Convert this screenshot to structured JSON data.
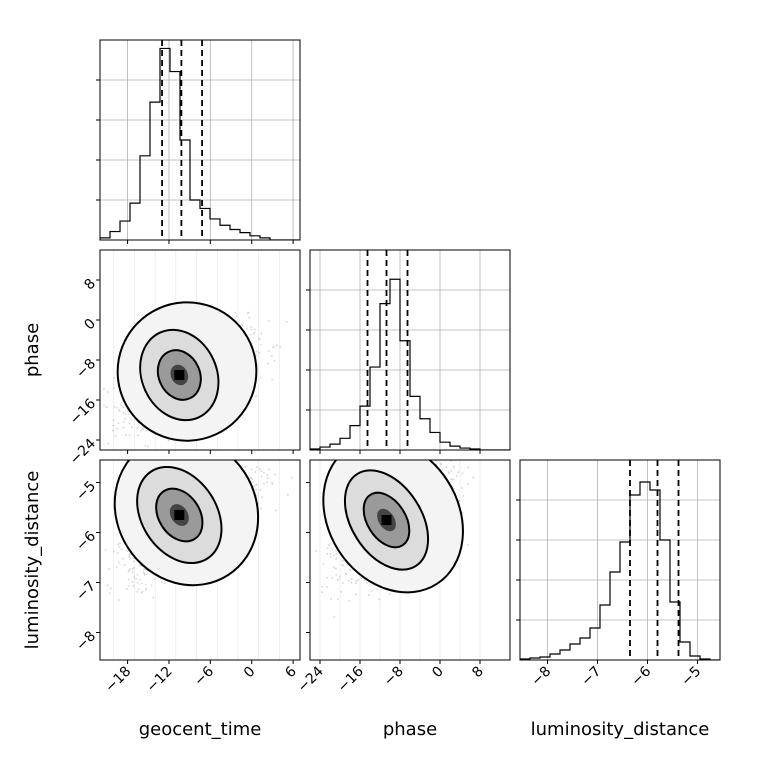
{
  "chart_data": {
    "type": "corner",
    "parameters": [
      {
        "name": "geocent_time",
        "label": "geocent_time",
        "range": [
          -22,
          7
        ],
        "ticks": [
          -18,
          -12,
          -6,
          0,
          6
        ],
        "quantiles": [
          -13,
          -10.2,
          -7.2
        ]
      },
      {
        "name": "phase",
        "label": "phase",
        "range": [
          -26,
          14
        ],
        "ticks": [
          -24,
          -16,
          -8,
          0,
          8
        ],
        "quantiles": [
          -14.5,
          -10.7,
          -6.5
        ]
      },
      {
        "name": "luminosity_distance",
        "label": "luminosity_distance",
        "range": [
          -8.55,
          -4.55
        ],
        "ticks": [
          -8,
          -7,
          -6,
          -5
        ],
        "quantiles": [
          -6.35,
          -5.8,
          -5.38
        ]
      }
    ],
    "tick_labels": {
      "geocent_time": [
        "−18",
        "−12",
        "−6",
        "0",
        "6"
      ],
      "phase": [
        "−24",
        "−16",
        "−8",
        "0",
        "8"
      ],
      "luminosity_distance": [
        "−8",
        "−7",
        "−6",
        "−5"
      ]
    },
    "histograms": {
      "geocent_time": {
        "edges_start": -22,
        "bin_width": 1.45,
        "counts": [
          2,
          8,
          18,
          35,
          80,
          131,
          182,
          160,
          95,
          38,
          30,
          20,
          14,
          10,
          7,
          4,
          2,
          0,
          0,
          0
        ],
        "ymax": 190
      },
      "phase": {
        "edges_start": -26,
        "bin_width": 2,
        "counts": [
          1,
          3,
          6,
          12,
          25,
          45,
          85,
          150,
          175,
          112,
          55,
          32,
          18,
          8,
          4,
          2,
          1,
          0,
          0,
          0
        ],
        "ymax": 205
      },
      "luminosity_distance": {
        "edges_start": -8.55,
        "bin_width": 0.2,
        "counts": [
          1,
          2,
          3,
          6,
          10,
          16,
          22,
          32,
          55,
          88,
          118,
          165,
          178,
          170,
          120,
          58,
          18,
          4,
          1,
          0
        ],
        "ymax": 200
      }
    },
    "joint": [
      {
        "x": "geocent_time",
        "y": "phase",
        "center": [
          -10.5,
          -11
        ],
        "spread": [
          3.5,
          4.5
        ],
        "corr": 0.55,
        "grid_x": [
          -20,
          -17,
          -14,
          -11,
          -8,
          -5,
          -2,
          1,
          4
        ],
        "grid_y": [
          -20,
          -16,
          -12,
          -8,
          -4,
          0,
          4,
          8
        ]
      },
      {
        "x": "geocent_time",
        "y": "luminosity_distance",
        "center": [
          -10.5,
          -5.65
        ],
        "spread": [
          3.5,
          0.55
        ],
        "corr": 0.65,
        "grid_x": [
          -20,
          -17,
          -14,
          -11,
          -8,
          -5,
          -2,
          1,
          4
        ],
        "grid_y": [
          -8,
          -7.5,
          -7,
          -6.5,
          -6,
          -5.5,
          -5
        ]
      },
      {
        "x": "phase",
        "y": "luminosity_distance",
        "center": [
          -10.7,
          -5.75
        ],
        "spread": [
          4.5,
          0.55
        ],
        "corr": 0.6,
        "grid_x": [
          -24,
          -20,
          -16,
          -12,
          -8,
          -4,
          0,
          4,
          8
        ],
        "grid_y": [
          -8,
          -7.5,
          -7,
          -6.5,
          -6,
          -5.5,
          -5
        ]
      }
    ],
    "grid": true,
    "colors": {
      "hist": "#000000",
      "contour": "#000000",
      "scatter": "#8c8c8c",
      "grid": "#b0b0b0"
    }
  }
}
